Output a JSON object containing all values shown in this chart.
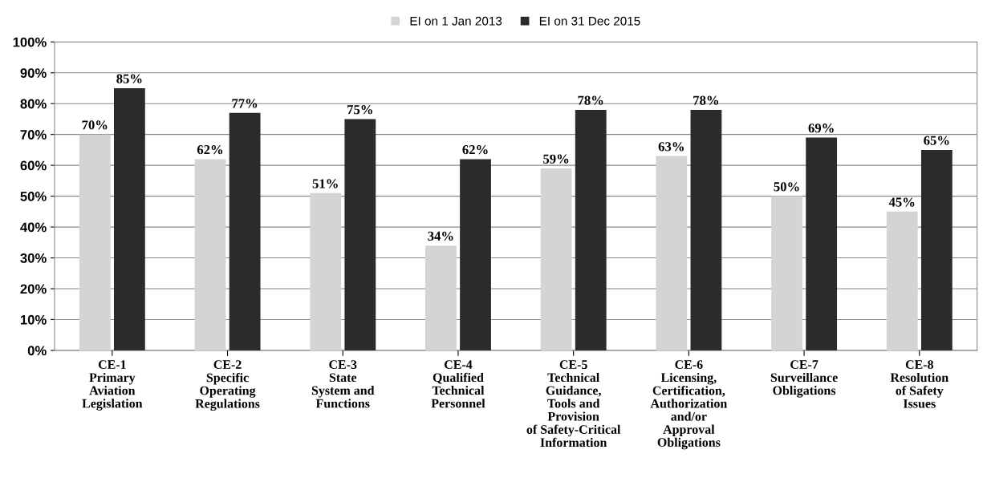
{
  "chart_data": {
    "type": "bar",
    "categories": [
      "CE-1\nPrimary\nAviation\nLegislation",
      "CE-2\nSpecific\nOperating\nRegulations",
      "CE-3\nState\nSystem and\nFunctions",
      "CE-4\nQualified\nTechnical\nPersonnel",
      "CE-5\nTechnical\nGuidance,\nTools and\nProvision\nof Safety-Critical\nInformation",
      "CE-6\nLicensing,\nCertification,\nAuthorization\nand/or\nApproval\nObligations",
      "CE-7\nSurveillance\nObligations",
      "CE-8\nResolution\nof Safety\nIssues"
    ],
    "series": [
      {
        "name": "EI on 1 Jan 2013",
        "color": "#d4d4d4",
        "values": [
          70,
          62,
          51,
          34,
          59,
          63,
          50,
          45
        ],
        "value_labels": [
          "70%",
          "62%",
          "51%",
          "34%",
          "59%",
          "63%",
          "50%",
          "45%"
        ]
      },
      {
        "name": "EI on 31 Dec 2015",
        "color": "#2b2b2b",
        "values": [
          85,
          77,
          75,
          62,
          78,
          78,
          69,
          65
        ],
        "value_labels": [
          "85%",
          "77%",
          "75%",
          "62%",
          "78%",
          "78%",
          "69%",
          "65%"
        ]
      }
    ],
    "ylim": [
      0,
      100
    ],
    "yticks": [
      {
        "value": 0,
        "label": "0%"
      },
      {
        "value": 10,
        "label": "10%"
      },
      {
        "value": 20,
        "label": "20%"
      },
      {
        "value": 30,
        "label": "30%"
      },
      {
        "value": 40,
        "label": "40%"
      },
      {
        "value": 50,
        "label": "50%"
      },
      {
        "value": 60,
        "label": "60%"
      },
      {
        "value": 70,
        "label": "70%"
      },
      {
        "value": 80,
        "label": "80%"
      },
      {
        "value": 90,
        "label": "90%"
      },
      {
        "value": 100,
        "label": "100%"
      }
    ],
    "grid": "y",
    "legend": "top"
  }
}
